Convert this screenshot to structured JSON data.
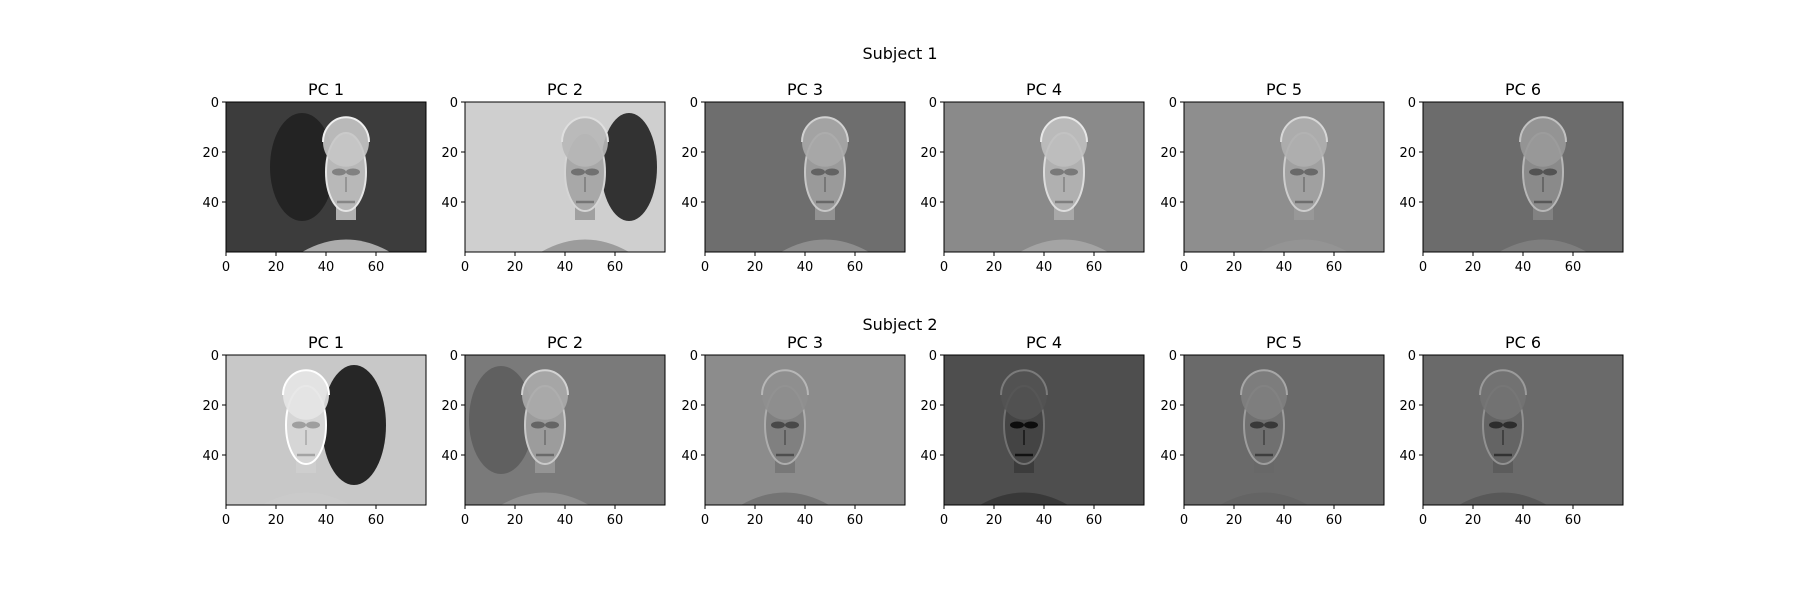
{
  "figure": {
    "subtitles": [
      "Subject 1",
      "Subject 2"
    ]
  },
  "colors": {
    "background": "#ffffff",
    "axis": "#000000",
    "colormap": "gray"
  },
  "chart_data": [
    {
      "type": "heatmap",
      "suptitle": "Subject 1",
      "title": "PC 1",
      "image": "grayscale face image",
      "xlim": [
        0,
        80
      ],
      "ylim": [
        60,
        0
      ],
      "xticks": [
        0,
        20,
        40,
        60
      ],
      "yticks": [
        0,
        20,
        40
      ],
      "background_gray": "#3c3c3c",
      "face_gray": "#b8b8b8",
      "shadow": "left"
    },
    {
      "type": "heatmap",
      "suptitle": "Subject 1",
      "title": "PC 2",
      "image": "grayscale face image",
      "xlim": [
        0,
        80
      ],
      "ylim": [
        60,
        0
      ],
      "xticks": [
        0,
        20,
        40,
        60
      ],
      "yticks": [
        0,
        20,
        40
      ],
      "background_gray": "#cfcfcf",
      "face_gray": "#a8a8a8",
      "shadow": "right"
    },
    {
      "type": "heatmap",
      "suptitle": "Subject 1",
      "title": "PC 3",
      "image": "grayscale face image",
      "xlim": [
        0,
        80
      ],
      "ylim": [
        60,
        0
      ],
      "xticks": [
        0,
        20,
        40,
        60
      ],
      "yticks": [
        0,
        20,
        40
      ],
      "background_gray": "#6e6e6e",
      "face_gray": "#9a9a9a",
      "shadow": "none"
    },
    {
      "type": "heatmap",
      "suptitle": "Subject 1",
      "title": "PC 4",
      "image": "grayscale face image",
      "xlim": [
        0,
        80
      ],
      "ylim": [
        60,
        0
      ],
      "xticks": [
        0,
        20,
        40,
        60
      ],
      "yticks": [
        0,
        20,
        40
      ],
      "background_gray": "#8a8a8a",
      "face_gray": "#b0b0b0",
      "shadow": "none"
    },
    {
      "type": "heatmap",
      "suptitle": "Subject 1",
      "title": "PC 5",
      "image": "grayscale face image",
      "xlim": [
        0,
        80
      ],
      "ylim": [
        60,
        0
      ],
      "xticks": [
        0,
        20,
        40,
        60
      ],
      "yticks": [
        0,
        20,
        40
      ],
      "background_gray": "#8e8e8e",
      "face_gray": "#a0a0a0",
      "shadow": "none"
    },
    {
      "type": "heatmap",
      "suptitle": "Subject 1",
      "title": "PC 6",
      "image": "grayscale face image",
      "xlim": [
        0,
        80
      ],
      "ylim": [
        60,
        0
      ],
      "xticks": [
        0,
        20,
        40,
        60
      ],
      "yticks": [
        0,
        20,
        40
      ],
      "background_gray": "#6c6c6c",
      "face_gray": "#8a8a8a",
      "shadow": "none"
    },
    {
      "type": "heatmap",
      "suptitle": "Subject 2",
      "title": "PC 1",
      "image": "grayscale face image",
      "xlim": [
        0,
        80
      ],
      "ylim": [
        60,
        0
      ],
      "xticks": [
        0,
        20,
        40,
        60
      ],
      "yticks": [
        0,
        20,
        40
      ],
      "background_gray": "#c8c8c8",
      "face_gray": "#d6d6d6",
      "shadow": "right-dark"
    },
    {
      "type": "heatmap",
      "suptitle": "Subject 2",
      "title": "PC 2",
      "image": "grayscale face image",
      "xlim": [
        0,
        80
      ],
      "ylim": [
        60,
        0
      ],
      "xticks": [
        0,
        20,
        40,
        60
      ],
      "yticks": [
        0,
        20,
        40
      ],
      "background_gray": "#7a7a7a",
      "face_gray": "#9c9c9c",
      "shadow": "left"
    },
    {
      "type": "heatmap",
      "suptitle": "Subject 2",
      "title": "PC 3",
      "image": "grayscale face image",
      "xlim": [
        0,
        80
      ],
      "ylim": [
        60,
        0
      ],
      "xticks": [
        0,
        20,
        40,
        60
      ],
      "yticks": [
        0,
        20,
        40
      ],
      "background_gray": "#8c8c8c",
      "face_gray": "#808080",
      "shadow": "none"
    },
    {
      "type": "heatmap",
      "suptitle": "Subject 2",
      "title": "PC 4",
      "image": "grayscale face image",
      "xlim": [
        0,
        80
      ],
      "ylim": [
        60,
        0
      ],
      "xticks": [
        0,
        20,
        40,
        60
      ],
      "yticks": [
        0,
        20,
        40
      ],
      "background_gray": "#4e4e4e",
      "face_gray": "#444444",
      "shadow": "none"
    },
    {
      "type": "heatmap",
      "suptitle": "Subject 2",
      "title": "PC 5",
      "image": "grayscale face image",
      "xlim": [
        0,
        80
      ],
      "ylim": [
        60,
        0
      ],
      "xticks": [
        0,
        20,
        40,
        60
      ],
      "yticks": [
        0,
        20,
        40
      ],
      "background_gray": "#6a6a6a",
      "face_gray": "#707070",
      "shadow": "none"
    },
    {
      "type": "heatmap",
      "suptitle": "Subject 2",
      "title": "PC 6",
      "image": "grayscale face image",
      "xlim": [
        0,
        80
      ],
      "ylim": [
        60,
        0
      ],
      "xticks": [
        0,
        20,
        40,
        60
      ],
      "yticks": [
        0,
        20,
        40
      ],
      "background_gray": "#6a6a6a",
      "face_gray": "#646464",
      "shadow": "none"
    }
  ]
}
